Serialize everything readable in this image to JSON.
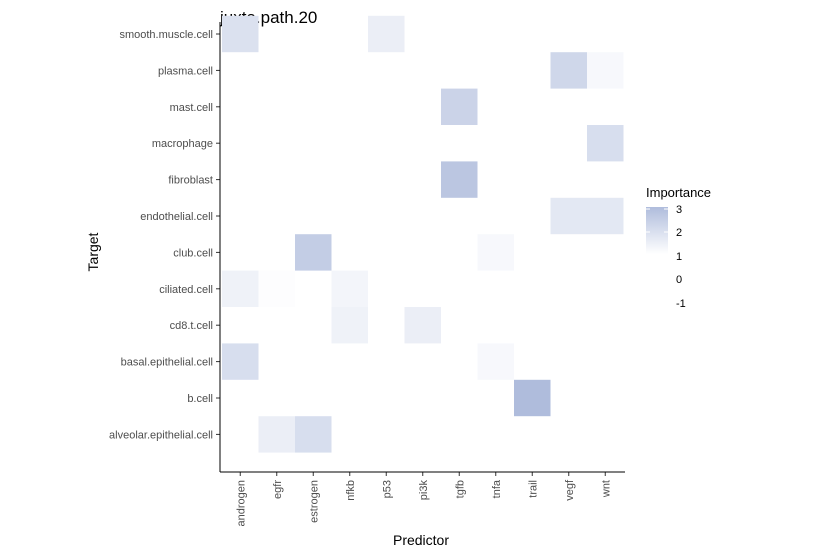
{
  "chart_data": {
    "type": "heatmap",
    "title": "juxta.path.20",
    "xlabel": "Predictor",
    "ylabel": "Target",
    "x_categories": [
      "androgen",
      "egfr",
      "estrogen",
      "nfkb",
      "p53",
      "pi3k",
      "tgfb",
      "tnfa",
      "trail",
      "vegf",
      "wnt"
    ],
    "y_categories": [
      "smooth.muscle.cell",
      "plasma.cell",
      "mast.cell",
      "macrophage",
      "fibroblast",
      "endothelial.cell",
      "club.cell",
      "ciliated.cell",
      "cd8.t.cell",
      "basal.epithelial.cell",
      "b.cell",
      "alveolar.epithelial.cell"
    ],
    "cells": [
      {
        "x": "androgen",
        "y": "smooth.muscle.cell",
        "value": 1.9
      },
      {
        "x": "p53",
        "y": "smooth.muscle.cell",
        "value": 1.5
      },
      {
        "x": "vegf",
        "y": "plasma.cell",
        "value": 2.2
      },
      {
        "x": "wnt",
        "y": "plasma.cell",
        "value": 1.2
      },
      {
        "x": "tgfb",
        "y": "mast.cell",
        "value": 2.3
      },
      {
        "x": "wnt",
        "y": "macrophage",
        "value": 2.0
      },
      {
        "x": "tgfb",
        "y": "fibroblast",
        "value": 2.7
      },
      {
        "x": "vegf",
        "y": "endothelial.cell",
        "value": 1.7
      },
      {
        "x": "wnt",
        "y": "endothelial.cell",
        "value": 1.7
      },
      {
        "x": "estrogen",
        "y": "club.cell",
        "value": 2.5
      },
      {
        "x": "tnfa",
        "y": "club.cell",
        "value": 1.2
      },
      {
        "x": "androgen",
        "y": "ciliated.cell",
        "value": 1.4
      },
      {
        "x": "egfr",
        "y": "ciliated.cell",
        "value": 1.05
      },
      {
        "x": "nfkb",
        "y": "ciliated.cell",
        "value": 1.3
      },
      {
        "x": "nfkb",
        "y": "cd8.t.cell",
        "value": 1.4
      },
      {
        "x": "pi3k",
        "y": "cd8.t.cell",
        "value": 1.5
      },
      {
        "x": "androgen",
        "y": "basal.epithelial.cell",
        "value": 2.0
      },
      {
        "x": "tnfa",
        "y": "basal.epithelial.cell",
        "value": 1.2
      },
      {
        "x": "trail",
        "y": "b.cell",
        "value": 3.0
      },
      {
        "x": "egfr",
        "y": "alveolar.epithelial.cell",
        "value": 1.5
      },
      {
        "x": "estrogen",
        "y": "alveolar.epithelial.cell",
        "value": 2.0
      }
    ],
    "legend": {
      "title": "Importance",
      "breaks": [
        3,
        2,
        1,
        0,
        -1
      ],
      "placement": "right",
      "range": [
        1,
        3
      ]
    },
    "colors": {
      "low": "#ffffff",
      "high": "#afbcdc",
      "axis": "#000000",
      "tick_text": "#4d4d4d"
    },
    "grid": false
  }
}
